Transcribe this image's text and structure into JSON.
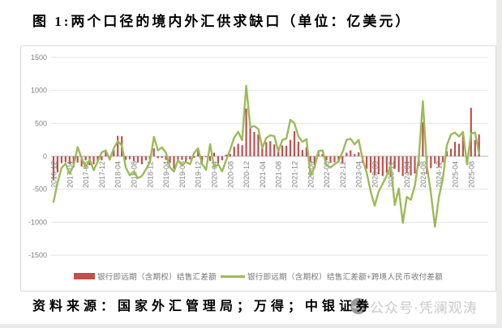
{
  "page": {
    "title": "图 1:两个口径的境内外汇供求缺口（单位：亿美元）",
    "source": "资料来源：国家外汇管理局；万得；中银证券",
    "watermark": "公众号·凭澜观涛"
  },
  "chart_data": {
    "type": "bar",
    "subtype": "bar-and-line combo",
    "title": "图 1:两个口径的境内外汇供求缺口（单位：亿美元）",
    "xlabel": "",
    "ylabel": "",
    "ylim": [
      -1500,
      1500
    ],
    "ytick_step": 500,
    "grid": "horizontal",
    "legend_position": "bottom",
    "x_tick_every": 4,
    "x_tick_labels": [
      "2016-12",
      "2017-04",
      "2017-08",
      "2017-12",
      "2018-04",
      "2018-08",
      "2018-12",
      "2019-04",
      "2019-08",
      "2019-12",
      "2020-04",
      "2020-08",
      "2020-12",
      "2021-04",
      "2021-08",
      "2021-12",
      "2022-04",
      "2022-08",
      "2022-12",
      "2023-04",
      "2023-08",
      "2023-12",
      "2024-04",
      "2024-08",
      "2024-12",
      "2025-04",
      "2025-08"
    ],
    "categories": [
      "2016-12",
      "2017-01",
      "2017-02",
      "2017-03",
      "2017-04",
      "2017-05",
      "2017-06",
      "2017-07",
      "2017-08",
      "2017-09",
      "2017-10",
      "2017-11",
      "2017-12",
      "2018-01",
      "2018-02",
      "2018-03",
      "2018-04",
      "2018-05",
      "2018-06",
      "2018-07",
      "2018-08",
      "2018-09",
      "2018-10",
      "2018-11",
      "2018-12",
      "2019-01",
      "2019-02",
      "2019-03",
      "2019-04",
      "2019-05",
      "2019-06",
      "2019-07",
      "2019-08",
      "2019-09",
      "2019-10",
      "2019-11",
      "2019-12",
      "2020-01",
      "2020-02",
      "2020-03",
      "2020-04",
      "2020-05",
      "2020-06",
      "2020-07",
      "2020-08",
      "2020-09",
      "2020-10",
      "2020-11",
      "2020-12",
      "2021-01",
      "2021-02",
      "2021-03",
      "2021-04",
      "2021-05",
      "2021-06",
      "2021-07",
      "2021-08",
      "2021-09",
      "2021-10",
      "2021-11",
      "2021-12",
      "2022-01",
      "2022-02",
      "2022-03",
      "2022-04",
      "2022-05",
      "2022-06",
      "2022-07",
      "2022-08",
      "2022-09",
      "2022-10",
      "2022-11",
      "2022-12",
      "2023-01",
      "2023-02",
      "2023-03",
      "2023-04",
      "2023-05",
      "2023-06",
      "2023-07",
      "2023-08",
      "2023-09",
      "2023-10",
      "2023-11",
      "2023-12",
      "2024-01",
      "2024-02",
      "2024-03",
      "2024-04",
      "2024-05",
      "2024-06",
      "2024-07",
      "2024-08",
      "2024-09",
      "2024-10",
      "2024-11",
      "2024-12",
      "2025-01",
      "2025-02",
      "2025-03",
      "2025-04",
      "2025-05",
      "2025-06",
      "2025-07",
      "2025-08",
      "2025-09",
      "2025-10"
    ],
    "series": [
      {
        "name": "银行即远期（含期权）结售汇差额",
        "type": "bar",
        "color": "#C0504D",
        "values": [
          -355,
          -245,
          -105,
          -90,
          -120,
          -170,
          -95,
          -155,
          -60,
          -135,
          -120,
          -75,
          -60,
          80,
          -45,
          95,
          310,
          305,
          -55,
          -45,
          -75,
          -95,
          -120,
          -60,
          -70,
          120,
          -30,
          -25,
          -55,
          -100,
          -190,
          -60,
          -55,
          -90,
          -45,
          -25,
          110,
          -90,
          -15,
          -70,
          55,
          -110,
          -60,
          25,
          35,
          145,
          190,
          170,
          725,
          460,
          370,
          330,
          140,
          215,
          230,
          180,
          120,
          165,
          160,
          250,
          380,
          220,
          95,
          140,
          -85,
          -135,
          65,
          35,
          -60,
          -100,
          -90,
          -90,
          -110,
          55,
          90,
          35,
          60,
          -100,
          -190,
          -250,
          -290,
          -270,
          -300,
          -250,
          -310,
          -190,
          -240,
          -300,
          -250,
          -290,
          -260,
          -150,
          520,
          -270,
          -180,
          -110,
          -160,
          -90,
          75,
          115,
          220,
          190,
          350,
          -60,
          735,
          250,
          330
        ]
      },
      {
        "name": "银行即远期（含期权）结售汇差额+跨境人民币收付差额",
        "type": "line",
        "color": "#9BBB59",
        "values": [
          -690,
          -400,
          -175,
          -110,
          -265,
          -140,
          140,
          -30,
          -170,
          -45,
          -210,
          -80,
          60,
          90,
          -50,
          120,
          230,
          165,
          -170,
          -290,
          -230,
          -330,
          -300,
          -200,
          -90,
          295,
          90,
          135,
          55,
          -170,
          -230,
          -60,
          -140,
          -85,
          -120,
          50,
          120,
          -115,
          -205,
          185,
          -165,
          -120,
          -230,
          -60,
          100,
          285,
          370,
          245,
          1070,
          440,
          460,
          415,
          125,
          280,
          320,
          305,
          75,
          250,
          270,
          555,
          500,
          305,
          220,
          260,
          -295,
          -170,
          80,
          90,
          -135,
          -170,
          -120,
          -80,
          65,
          250,
          265,
          180,
          250,
          -45,
          -245,
          -535,
          -750,
          -535,
          -415,
          -290,
          -140,
          -740,
          -490,
          -1010,
          -615,
          -660,
          -450,
          -30,
          835,
          -150,
          -550,
          -1070,
          -620,
          -330,
          170,
          330,
          360,
          300,
          370,
          -125,
          345,
          360,
          40
        ]
      }
    ],
    "colors": {
      "grid": "#e2e2e2",
      "zero_axis": "#b3b3b3",
      "tick_text": "#7f7f7f"
    }
  }
}
